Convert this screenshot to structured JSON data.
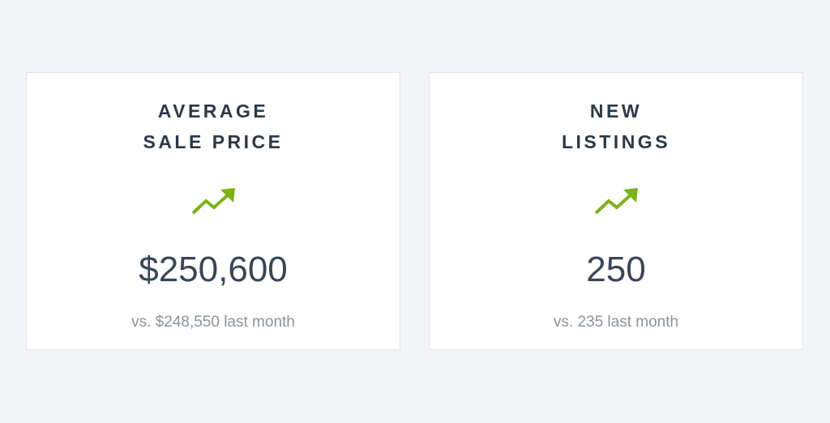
{
  "cards": [
    {
      "title_lines": [
        "AVERAGE",
        "SALE PRICE"
      ],
      "value": "$250,600",
      "comparison": "vs. $248,550 last month"
    },
    {
      "title_lines": [
        "NEW",
        "LISTINGS"
      ],
      "value": "250",
      "comparison": "vs. 235 last month"
    }
  ]
}
